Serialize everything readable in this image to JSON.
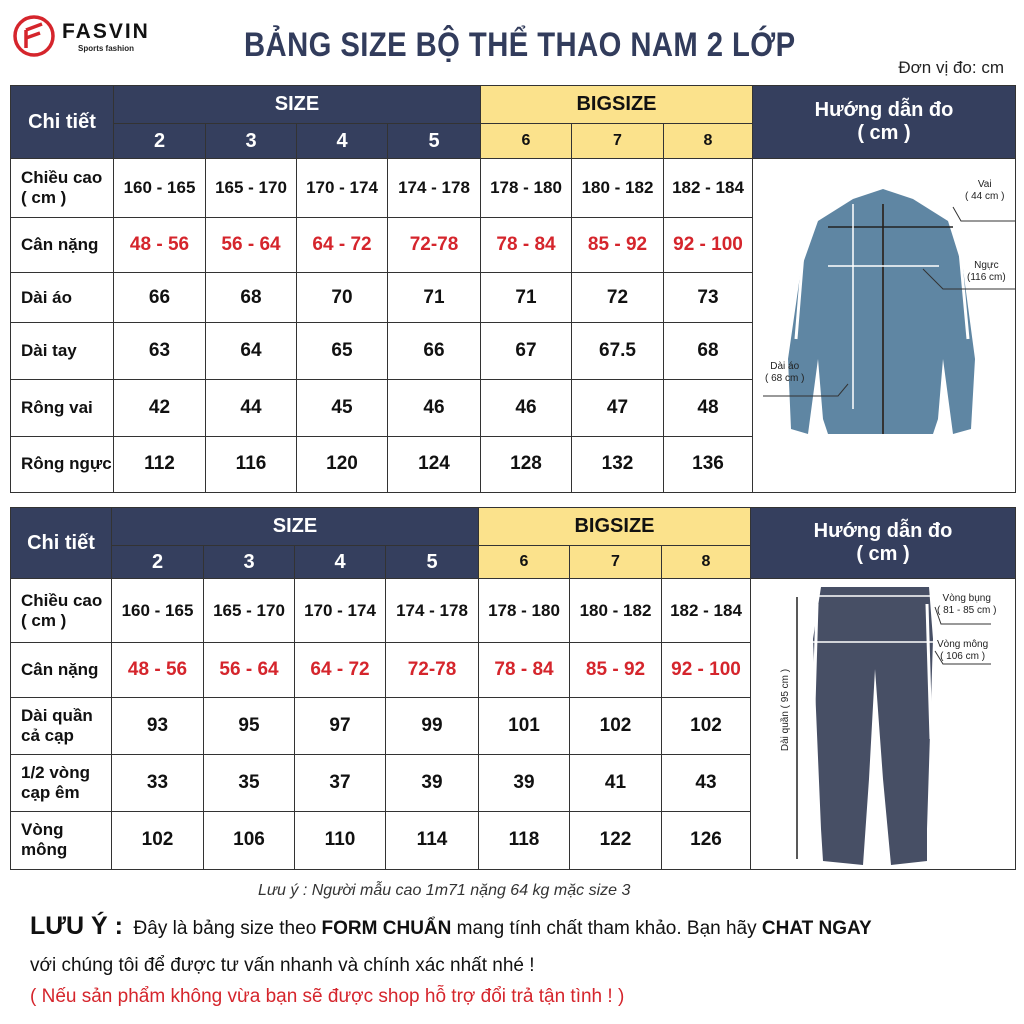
{
  "brand": {
    "name": "FASVIN",
    "tagline": "Sports fashion",
    "color": "#d5252c"
  },
  "title": "BẢNG SIZE BỘ THỂ THAO NAM 2 LỚP",
  "unit": "Đơn vị đo: cm",
  "colors": {
    "header": "#353f5e",
    "bigsize": "#fbe28c",
    "red": "#d5252c"
  },
  "sizes": [
    "2",
    "3",
    "4",
    "5",
    "6",
    "7",
    "8"
  ],
  "headers": {
    "detail": "Chi tiết",
    "size": "SIZE",
    "bigsize": "BIGSIZE",
    "guide": "Hướng dẫn đo",
    "guide_unit": "( cm )"
  },
  "jacket": {
    "rows": [
      {
        "label": "Chiều cao",
        "label2": "( cm )",
        "values": [
          "160 - 165",
          "165 - 170",
          "170 - 174",
          "174 - 178",
          "178 - 180",
          "180 - 182",
          "182 - 184"
        ]
      },
      {
        "label": "Cân nặng",
        "values": [
          "48 - 56",
          "56 - 64",
          "64 - 72",
          "72-78",
          "78 - 84",
          "85 - 92",
          "92 - 100"
        ]
      },
      {
        "label": "Dài áo",
        "values": [
          "66",
          "68",
          "70",
          "71",
          "71",
          "72",
          "73"
        ]
      },
      {
        "label": "Dài tay",
        "values": [
          "63",
          "64",
          "65",
          "66",
          "67",
          "67.5",
          "68"
        ]
      },
      {
        "label": "Rông vai",
        "values": [
          "42",
          "44",
          "45",
          "46",
          "46",
          "47",
          "48"
        ]
      },
      {
        "label": "Rông ngực",
        "values": [
          "112",
          "116",
          "120",
          "124",
          "128",
          "132",
          "136"
        ]
      }
    ],
    "annotations": {
      "vai": "Vai",
      "vai_v": "( 44 cm )",
      "nguc": "Ngực",
      "nguc_v": "(116 cm)",
      "dai": "Dài áo",
      "dai_v": "( 68 cm )"
    }
  },
  "pants": {
    "rows": [
      {
        "label": "Chiều cao",
        "label2": "( cm )",
        "values": [
          "160 - 165",
          "165 - 170",
          "170 - 174",
          "174 - 178",
          "178 - 180",
          "180 - 182",
          "182 - 184"
        ]
      },
      {
        "label": "Cân nặng",
        "values": [
          "48 - 56",
          "56 - 64",
          "64 - 72",
          "72-78",
          "78 - 84",
          "85 - 92",
          "92 - 100"
        ]
      },
      {
        "label": "Dài quần",
        "label2": "cả cạp",
        "values": [
          "93",
          "95",
          "97",
          "99",
          "101",
          "102",
          "102"
        ]
      },
      {
        "label": "1/2 vòng",
        "label2": "cạp êm",
        "values": [
          "33",
          "35",
          "37",
          "39",
          "39",
          "41",
          "43"
        ]
      },
      {
        "label": "Vòng",
        "label2": "mông",
        "values": [
          "102",
          "106",
          "110",
          "114",
          "118",
          "122",
          "126"
        ]
      }
    ],
    "annotations": {
      "bung": "Vòng bụng",
      "bung_v": "( 81 - 85 cm )",
      "mong": "Vòng mông",
      "mong_v": "( 106 cm )",
      "dai": "Dài quần ( 95 cm )"
    }
  },
  "footer": {
    "note": "Lưu ý : Người mẫu cao 1m71 nặng 64 kg mặc size 3",
    "luu_y": "LƯU Ý :",
    "t1": "Đây là bảng size theo",
    "b1": "FORM CHUẨN",
    "t2": "mang tính chất tham khảo. Bạn hãy",
    "b2": "CHAT NGAY",
    "line2": "với chúng tôi để được tư vấn nhanh và chính xác nhất nhé !",
    "line3": "( Nếu sản phẩm không vừa bạn sẽ được shop hỗ trợ đổi trả tận tình ! )"
  }
}
